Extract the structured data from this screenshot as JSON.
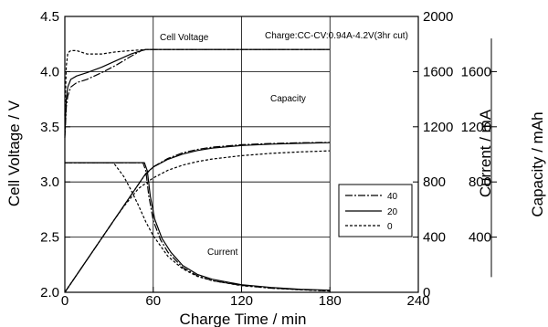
{
  "chart_data": {
    "type": "line",
    "annotation_conditions": "Charge:CC-CV:0.94A-4.2V(3hr cut)",
    "annotations": {
      "voltage": "Cell Voltage",
      "capacity": "Capacity",
      "current": "Current"
    },
    "xlabel": "Charge Time  /  min",
    "ylabel_left": "Cell Voltage  /  V",
    "ylabel_right_inner": "Current  /  mA",
    "ylabel_right_outer": "Capacity  /  mAh",
    "xlim": [
      0,
      240
    ],
    "ylim_voltage": [
      2.0,
      4.5
    ],
    "ylim_current": [
      0,
      2000
    ],
    "capacity_ticks": [
      400,
      800,
      1200,
      1600
    ],
    "x_ticks": [
      "0",
      "60",
      "120",
      "180",
      "240"
    ],
    "voltage_ticks": [
      "2.0",
      "2.5",
      "3.0",
      "3.5",
      "4.0",
      "4.5"
    ],
    "current_ticks": [
      "0",
      "400",
      "800",
      "1200",
      "1600",
      "2000"
    ],
    "capacity_tick_labels": [
      "400",
      "800",
      "1200",
      "1600"
    ],
    "grid": true,
    "legend": {
      "placement": "right-middle",
      "entries": [
        {
          "label": "40",
          "dash": "dashdot"
        },
        {
          "label": "20",
          "dash": "solid"
        },
        {
          "label": "0",
          "dash": "dashed"
        }
      ]
    },
    "series": [
      {
        "name": "40",
        "quantity": "voltage",
        "x": [
          0,
          1,
          2,
          4,
          8,
          15,
          25,
          35,
          45,
          52,
          55,
          180
        ],
        "y": [
          3.4,
          3.68,
          3.78,
          3.86,
          3.9,
          3.93,
          3.99,
          4.06,
          4.14,
          4.19,
          4.2,
          4.2
        ]
      },
      {
        "name": "20",
        "quantity": "voltage",
        "x": [
          0,
          1,
          2,
          4,
          8,
          15,
          25,
          35,
          45,
          52,
          55,
          180
        ],
        "y": [
          3.42,
          3.75,
          3.86,
          3.93,
          3.96,
          3.99,
          4.04,
          4.1,
          4.16,
          4.19,
          4.2,
          4.2
        ]
      },
      {
        "name": "0",
        "quantity": "voltage",
        "x": [
          0,
          1,
          2,
          4,
          8,
          15,
          25,
          35,
          45,
          55,
          180
        ],
        "y": [
          3.6,
          4.05,
          4.17,
          4.19,
          4.19,
          4.16,
          4.16,
          4.18,
          4.19,
          4.2,
          4.2
        ]
      },
      {
        "name": "40",
        "quantity": "current",
        "x": [
          0,
          53,
          55,
          57,
          60,
          65,
          70,
          80,
          90,
          100,
          120,
          140,
          160,
          180
        ],
        "y": [
          940,
          940,
          880,
          700,
          520,
          380,
          290,
          180,
          120,
          85,
          50,
          30,
          20,
          10
        ]
      },
      {
        "name": "20",
        "quantity": "current",
        "x": [
          0,
          54,
          56,
          58,
          61,
          66,
          72,
          80,
          90,
          100,
          120,
          140,
          160,
          180
        ],
        "y": [
          940,
          940,
          880,
          700,
          530,
          390,
          290,
          195,
          130,
          95,
          55,
          35,
          22,
          15
        ]
      },
      {
        "name": "0",
        "quantity": "current",
        "x": [
          0,
          33,
          40,
          45,
          50,
          55,
          60,
          70,
          80,
          90,
          100,
          120,
          140,
          160,
          180
        ],
        "y": [
          940,
          940,
          840,
          740,
          630,
          510,
          410,
          260,
          170,
          115,
          85,
          48,
          30,
          18,
          10
        ]
      },
      {
        "name": "40",
        "quantity": "capacity",
        "x": [
          0,
          54,
          60,
          70,
          80,
          90,
          100,
          120,
          140,
          160,
          180
        ],
        "y": [
          0,
          846,
          909,
          971,
          1011,
          1036,
          1052,
          1070,
          1079,
          1084,
          1087
        ]
      },
      {
        "name": "20",
        "quantity": "capacity",
        "x": [
          0,
          55,
          60,
          70,
          80,
          90,
          100,
          120,
          140,
          160,
          180
        ],
        "y": [
          0,
          862,
          908,
          964,
          1002,
          1028,
          1045,
          1064,
          1074,
          1080,
          1085
        ]
      },
      {
        "name": "0",
        "quantity": "capacity",
        "x": [
          0,
          33,
          40,
          50,
          60,
          70,
          80,
          90,
          100,
          120,
          140,
          160,
          180
        ],
        "y": [
          0,
          517,
          622,
          752,
          829,
          885,
          922,
          948,
          966,
          991,
          1007,
          1018,
          1026
        ]
      }
    ]
  }
}
